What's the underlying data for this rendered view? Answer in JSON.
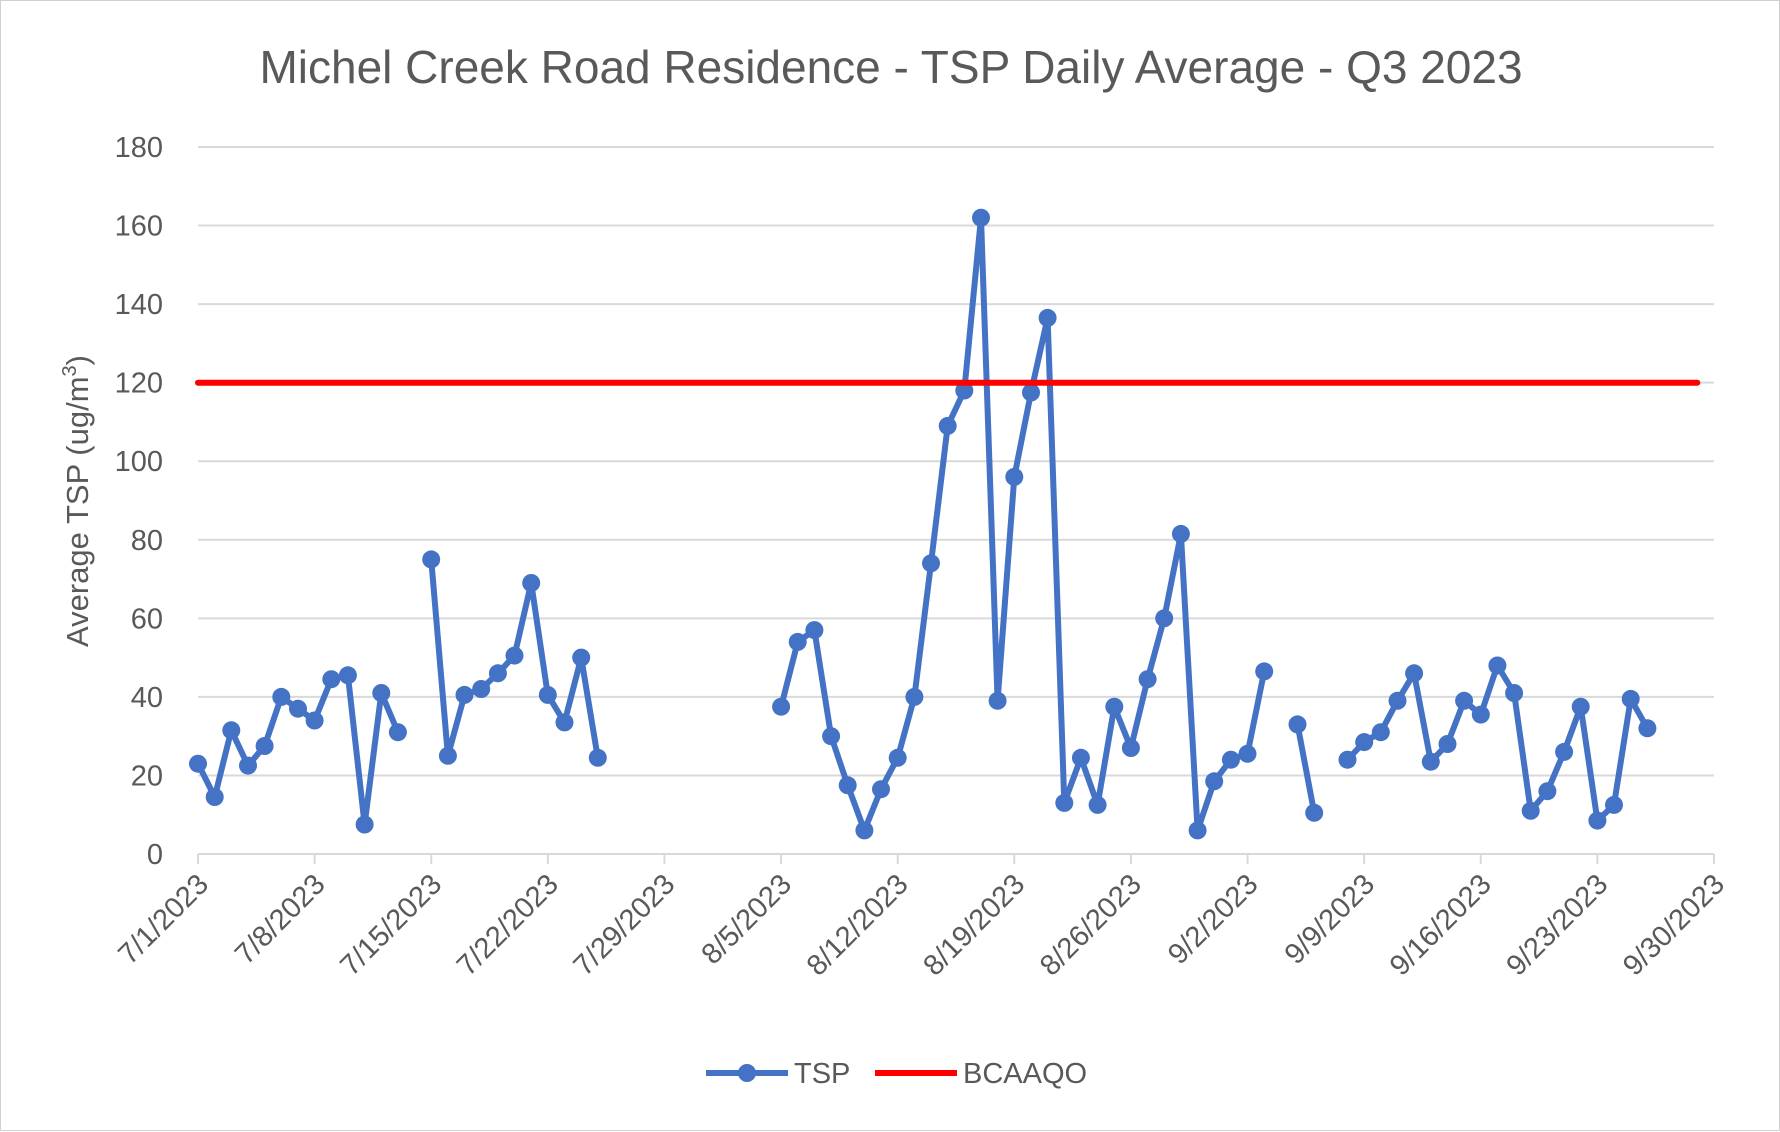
{
  "chart_data": {
    "type": "line",
    "title": "Michel Creek Road Residence - TSP Daily Average - Q3 2023",
    "ylabel": "Average TSP (ug/m",
    "ylabel_sup": "3",
    "ylabel_end": ")",
    "xlabel": "",
    "ylim": [
      0,
      180
    ],
    "yticks": [
      "0",
      "20",
      "40",
      "60",
      "80",
      "100",
      "120",
      "140",
      "160",
      "180"
    ],
    "xlim": [
      "2023-07-01",
      "2023-09-30"
    ],
    "xticks": [
      "7/1/2023",
      "7/8/2023",
      "7/15/2023",
      "7/22/2023",
      "7/29/2023",
      "8/5/2023",
      "8/12/2023",
      "8/19/2023",
      "8/26/2023",
      "9/2/2023",
      "9/9/2023",
      "9/16/2023",
      "9/23/2023",
      "9/30/2023"
    ],
    "grid": true,
    "legend_position": "bottom",
    "series": [
      {
        "name": "TSP",
        "color": "#4472c4",
        "markers": true,
        "points": [
          [
            "2023-07-01",
            23
          ],
          [
            "2023-07-02",
            14.5
          ],
          [
            "2023-07-03",
            31.5
          ],
          [
            "2023-07-04",
            22.5
          ],
          [
            "2023-07-05",
            27.5
          ],
          [
            "2023-07-06",
            40
          ],
          [
            "2023-07-07",
            37
          ],
          [
            "2023-07-08",
            34
          ],
          [
            "2023-07-09",
            44.5
          ],
          [
            "2023-07-10",
            45.5
          ],
          [
            "2023-07-11",
            7.5
          ],
          [
            "2023-07-12",
            41
          ],
          [
            "2023-07-13",
            31
          ],
          [
            "2023-07-14",
            null
          ],
          [
            "2023-07-15",
            75
          ],
          [
            "2023-07-16",
            25
          ],
          [
            "2023-07-17",
            40.5
          ],
          [
            "2023-07-18",
            42
          ],
          [
            "2023-07-19",
            46
          ],
          [
            "2023-07-20",
            50.5
          ],
          [
            "2023-07-21",
            69
          ],
          [
            "2023-07-22",
            40.5
          ],
          [
            "2023-07-23",
            33.5
          ],
          [
            "2023-07-24",
            50
          ],
          [
            "2023-07-25",
            24.5
          ],
          [
            "2023-07-26",
            null
          ],
          [
            "2023-08-05",
            37.5
          ],
          [
            "2023-08-06",
            54
          ],
          [
            "2023-08-07",
            57
          ],
          [
            "2023-08-08",
            30
          ],
          [
            "2023-08-09",
            17.5
          ],
          [
            "2023-08-10",
            6
          ],
          [
            "2023-08-11",
            16.5
          ],
          [
            "2023-08-12",
            24.5
          ],
          [
            "2023-08-13",
            40
          ],
          [
            "2023-08-14",
            74
          ],
          [
            "2023-08-15",
            109
          ],
          [
            "2023-08-16",
            118
          ],
          [
            "2023-08-17",
            162
          ],
          [
            "2023-08-18",
            39
          ],
          [
            "2023-08-19",
            96
          ],
          [
            "2023-08-20",
            117.5
          ],
          [
            "2023-08-21",
            136.5
          ],
          [
            "2023-08-22",
            13
          ],
          [
            "2023-08-23",
            24.5
          ],
          [
            "2023-08-24",
            12.5
          ],
          [
            "2023-08-25",
            37.5
          ],
          [
            "2023-08-26",
            27
          ],
          [
            "2023-08-27",
            44.5
          ],
          [
            "2023-08-28",
            60
          ],
          [
            "2023-08-29",
            81.5
          ],
          [
            "2023-08-30",
            6
          ],
          [
            "2023-08-31",
            18.5
          ],
          [
            "2023-09-01",
            24
          ],
          [
            "2023-09-02",
            25.5
          ],
          [
            "2023-09-03",
            46.5
          ],
          [
            "2023-09-04",
            null
          ],
          [
            "2023-09-05",
            33
          ],
          [
            "2023-09-06",
            10.5
          ],
          [
            "2023-09-07",
            null
          ],
          [
            "2023-09-08",
            24
          ],
          [
            "2023-09-09",
            28.5
          ],
          [
            "2023-09-10",
            31
          ],
          [
            "2023-09-11",
            39
          ],
          [
            "2023-09-12",
            46
          ],
          [
            "2023-09-13",
            23.5
          ],
          [
            "2023-09-14",
            28
          ],
          [
            "2023-09-15",
            39
          ],
          [
            "2023-09-16",
            35.5
          ],
          [
            "2023-09-17",
            48
          ],
          [
            "2023-09-18",
            41
          ],
          [
            "2023-09-19",
            11
          ],
          [
            "2023-09-20",
            16
          ],
          [
            "2023-09-21",
            26
          ],
          [
            "2023-09-22",
            37.5
          ],
          [
            "2023-09-23",
            8.5
          ],
          [
            "2023-09-24",
            12.5
          ],
          [
            "2023-09-25",
            39.5
          ],
          [
            "2023-09-26",
            32
          ]
        ]
      },
      {
        "name": "BCAAQO",
        "color": "#ff0000",
        "markers": false,
        "points": [
          [
            "2023-07-01",
            120
          ],
          [
            "2023-09-29",
            120
          ]
        ]
      }
    ]
  }
}
